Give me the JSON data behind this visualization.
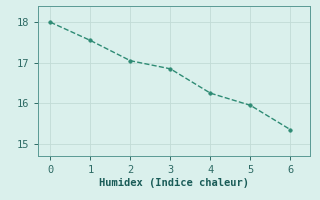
{
  "x": [
    0,
    1,
    2,
    3,
    4,
    5,
    6
  ],
  "y": [
    18.0,
    17.55,
    17.05,
    16.85,
    16.25,
    15.95,
    15.35
  ],
  "line_color": "#2e8b74",
  "marker": "o",
  "marker_size": 2.5,
  "line_width": 1.0,
  "line_style": "--",
  "xlabel": "Humidex (Indice chaleur)",
  "xlabel_fontsize": 7.5,
  "xlim": [
    -0.3,
    6.5
  ],
  "ylim": [
    14.7,
    18.4
  ],
  "xticks": [
    0,
    1,
    2,
    3,
    4,
    5,
    6
  ],
  "yticks": [
    15,
    16,
    17,
    18
  ],
  "background_color": "#daf0ec",
  "plot_bg_color": "#daf0ec",
  "grid_color": "#c2dbd6",
  "tick_fontsize": 7.5,
  "tick_color": "#2e6b65",
  "xlabel_color": "#1a5c58",
  "spine_color": "#5a9a94"
}
